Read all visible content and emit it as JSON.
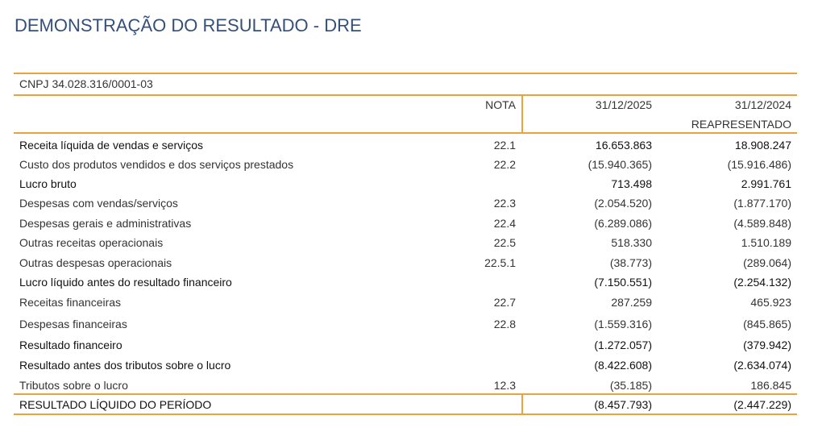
{
  "header": {
    "title": "DEMONSTRAÇÃO DO RESULTADO - DRE"
  },
  "table": {
    "cnpj": "CNPJ 34.028.316/0001-03",
    "columns": {
      "nota": "NOTA",
      "current": "31/12/2025",
      "previous": "31/12/2024",
      "previous_note": "REAPRESENTADO"
    },
    "rows": [
      [
        "Receita líquida de vendas e serviços",
        "22.1",
        "16.653.863",
        "18.908.247"
      ],
      [
        "Custo dos produtos vendidos e dos serviços prestados",
        "22.2",
        "(15.940.365)",
        "(15.916.486)"
      ],
      [
        "Lucro bruto",
        null,
        "713.498",
        "2.991.761"
      ],
      [
        "Despesas com vendas/serviços",
        "22.3",
        "(2.054.520)",
        "(1.877.170)"
      ],
      [
        "Despesas gerais e administrativas",
        "22.4",
        "(6.289.086)",
        "(4.589.848)"
      ],
      [
        "Outras receitas operacionais",
        "22.5",
        "518.330",
        "1.510.189"
      ],
      [
        "Outras despesas operacionais",
        "22.5.1",
        "(38.773)",
        "(289.064)"
      ],
      [
        "Lucro líquido antes do resultado financeiro",
        null,
        "(7.150.551)",
        "(2.254.132)"
      ],
      [
        "Receitas financeiras",
        "22.7",
        "287.259",
        "465.923"
      ],
      [
        "Despesas financeiras",
        "22.8",
        "(1.559.316)",
        "(845.865)"
      ],
      [
        "Resultado financeiro",
        null,
        "(1.272.057)",
        "(379.942)"
      ],
      [
        "Resultado antes dos tributos sobre o lucro",
        null,
        "(8.422.608)",
        "(2.634.074)"
      ],
      [
        "Tributos sobre o lucro",
        "12.3",
        "(35.185)",
        "186.845"
      ]
    ],
    "total": [
      "RESULTADO LÍQUIDO DO PERÍODO",
      "(8.457.793)",
      "(2.447.229)"
    ]
  }
}
